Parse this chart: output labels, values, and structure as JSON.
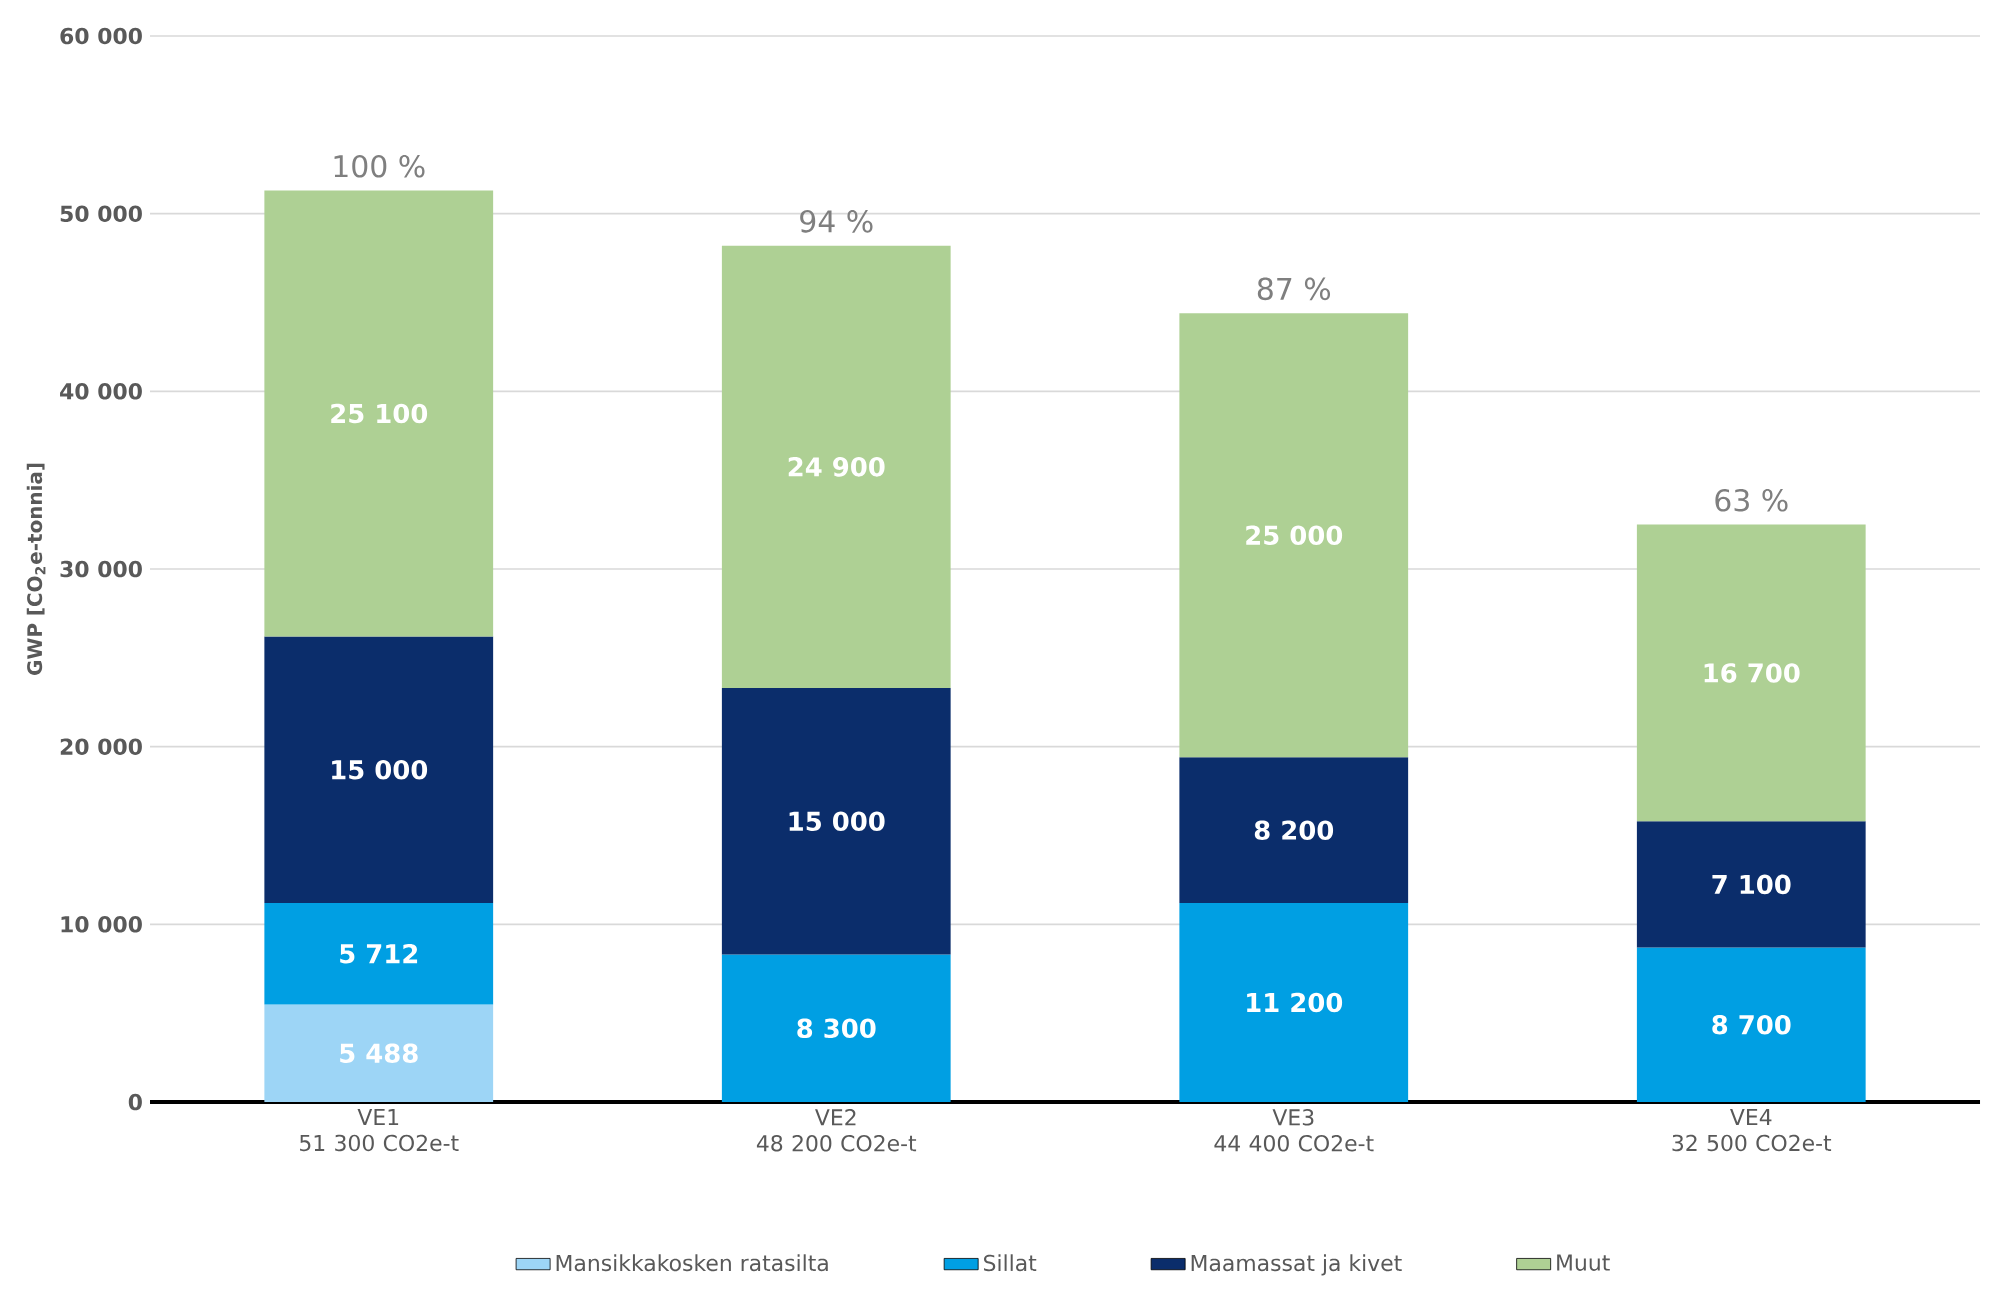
{
  "chart_data": {
    "type": "bar",
    "stacked": true,
    "ylabel": "GWP [CO$_{2}$e-tonnia]",
    "categories": [
      "VE1 51 300 CO2e-t",
      "VE2 48 200 CO2e-t",
      "VE3 44 400 CO2e-t",
      "VE4 32 500 CO2e-t"
    ],
    "series": [
      {
        "name": "Mansikkakosken ratasilta",
        "color": "#9dd5f6",
        "values": [
          5488,
          null,
          null,
          null
        ],
        "value_labels": [
          "5 488",
          null,
          null,
          null
        ]
      },
      {
        "name": "Sillat",
        "color": "#009fe3",
        "values": [
          5712,
          8300,
          11200,
          8700
        ],
        "value_labels": [
          "5 712",
          "8 300",
          "11 200",
          "8 700"
        ]
      },
      {
        "name": "Maamassat ja kivet",
        "color": "#0b2d6b",
        "values": [
          15000,
          15000,
          8200,
          7100
        ],
        "value_labels": [
          "15 000",
          "15 000",
          "8 200",
          "7 100"
        ]
      },
      {
        "name": "Muut",
        "color": "#aed094",
        "values": [
          25100,
          24900,
          25000,
          16700
        ],
        "value_labels": [
          "25 100",
          "24 900",
          "25 000",
          "16 700"
        ]
      }
    ],
    "annotations": [
      {
        "text": "100 %",
        "x": "VE1 51 300 CO2e-t",
        "y": 51300
      },
      {
        "text": "94 %",
        "x": "VE2 48 200 CO2e-t",
        "y": 48200
      },
      {
        "text": "87 %",
        "x": "VE3 44 400 CO2e-t",
        "y": 44400
      },
      {
        "text": "63 %",
        "x": "VE4 32 500 CO2e-t",
        "y": 32500
      }
    ],
    "ylim": [
      0,
      60000
    ],
    "yticks": [
      0,
      {
        "value": 10000,
        "label": "10 000"
      },
      {
        "value": 20000,
        "label": "20 000"
      },
      {
        "value": 30000,
        "label": "30 000"
      },
      {
        "value": 40000,
        "label": "40 000"
      },
      {
        "value": 50000,
        "label": "50 000"
      },
      {
        "value": 60000,
        "label": "60 000"
      }
    ],
    "grid": "y",
    "legend": "bottom"
  }
}
